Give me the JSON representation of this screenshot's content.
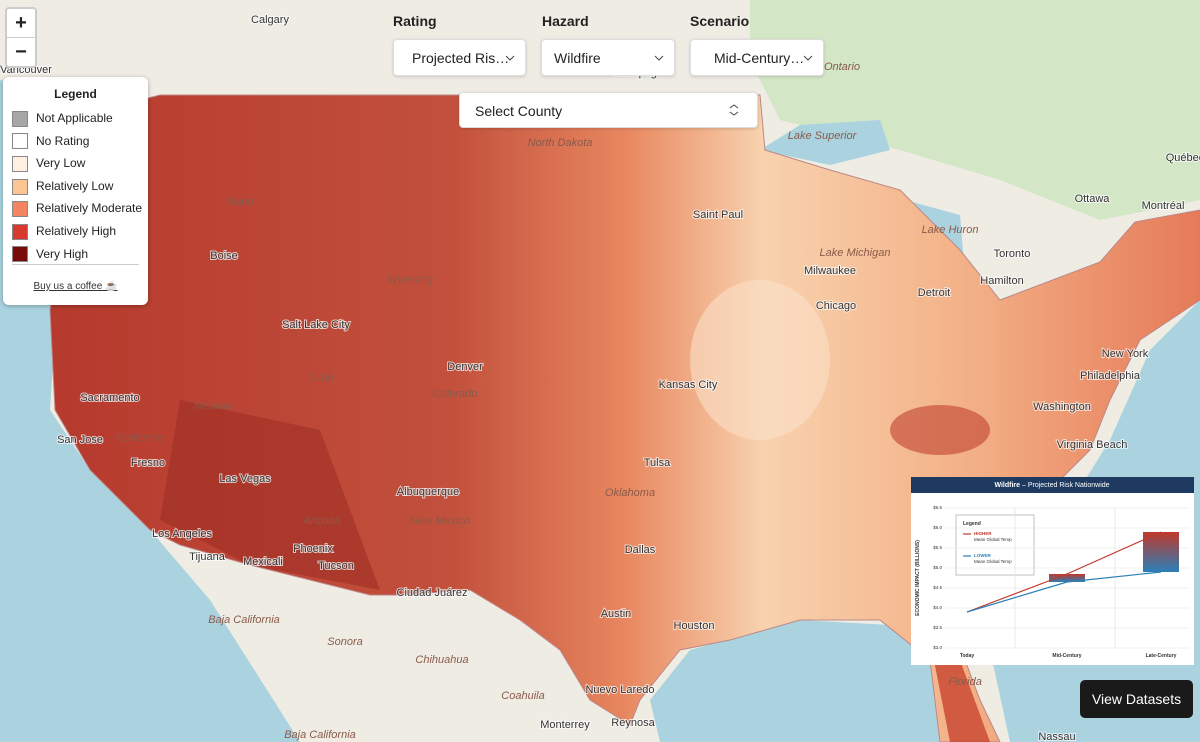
{
  "controls": {
    "zoom_in": "+",
    "zoom_out": "−",
    "rating_label": "Rating",
    "rating_value": "Projected Ris…",
    "hazard_label": "Hazard",
    "hazard_value": "Wildfire",
    "scenario_label": "Scenario",
    "scenario_value": "Mid-Century…",
    "county_select": "Select County",
    "view_datasets": "View Datasets"
  },
  "legend": {
    "title": "Legend",
    "link": "Buy us a coffee ☕",
    "items": [
      {
        "label": "Not Applicable",
        "color": "#a6a6a6"
      },
      {
        "label": "No Rating",
        "color": "#ffffff"
      },
      {
        "label": "Very Low",
        "color": "#fff0e4"
      },
      {
        "label": "Relatively Low",
        "color": "#fcc591"
      },
      {
        "label": "Relatively Moderate",
        "color": "#f4845f"
      },
      {
        "label": "Relatively High",
        "color": "#d63a2f"
      },
      {
        "label": "Very High",
        "color": "#7a0b0b"
      }
    ]
  },
  "map_labels": [
    "Calgary",
    "Vancouver",
    "Winnipeg",
    "Ontario",
    "Lake Superior",
    "Québec",
    "Ottawa",
    "Montréal",
    "Lake Huron",
    "Toronto",
    "Hamilton",
    "Saint Paul",
    "North Dakota",
    "Lake Michigan",
    "Milwaukee",
    "Chicago",
    "Detroit",
    "New York",
    "Philadelphia",
    "Washington",
    "Virginia Beach",
    "Idaho",
    "Boise",
    "Wyoming",
    "Salt Lake City",
    "Utah",
    "Denver",
    "Colorado",
    "Nevada",
    "Sacramento",
    "San Jose",
    "California",
    "Fresno",
    "Las Vegas",
    "Los Angeles",
    "Tijuana",
    "Mexicali",
    "Phoenix",
    "Tucson",
    "Arizona",
    "Albuquerque",
    "New Mexico",
    "Ciudad Juárez",
    "Kansas City",
    "Oklahoma",
    "Tulsa",
    "Dallas",
    "Austin",
    "Houston",
    "Baja California",
    "Sonora",
    "Chihuahua",
    "Coahuila",
    "Nuevo Laredo",
    "Monterrey",
    "Reynosa",
    "Florida",
    "Nassau",
    "Baja California"
  ],
  "inset_chart": {
    "type": "line",
    "title_bold": "Wildfire",
    "title_rest": "– Projected Risk Nationwide",
    "y_label": "ECONOMIC IMPACT (BILLIONS)",
    "legend_title": "Legend",
    "categories": [
      "Today",
      "Mid-Century",
      "Late-Century"
    ],
    "series": [
      {
        "name": "HIGHER",
        "note": "Mean Global Temp",
        "color": "#c0392b",
        "values": [
          3.9,
          4.85,
          5.9
        ]
      },
      {
        "name": "LOWER",
        "note": "Mean Global Temp",
        "color": "#2a7fb8",
        "values": [
          3.9,
          4.65,
          4.9
        ]
      }
    ],
    "ylim": [
      3.0,
      6.5
    ],
    "yticks": [
      {
        "value": 3.0,
        "label": "$3.0"
      },
      {
        "value": 3.5,
        "label": "$3.5"
      },
      {
        "value": 4.0,
        "label": "$4.0"
      },
      {
        "value": 4.5,
        "label": "$4.5"
      },
      {
        "value": 5.0,
        "label": "$5.0"
      },
      {
        "value": 5.5,
        "label": "$5.5"
      },
      {
        "value": 6.0,
        "label": "$6.0"
      },
      {
        "value": 6.5,
        "label": "$6.5"
      }
    ],
    "grid": true
  }
}
